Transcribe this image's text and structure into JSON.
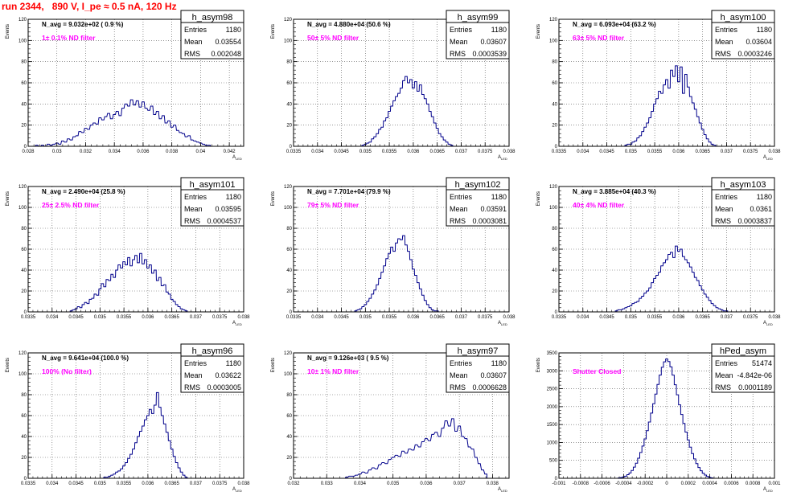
{
  "page": {
    "title": "run 2344,   890 V, I_pe ≈ 0.5 nA, 120 Hz"
  },
  "colors": {
    "title": "#ff0000",
    "histogram": "#00008b",
    "annotation": "#ff00ff",
    "frame": "#000000",
    "grid": "#555555"
  },
  "chart_data": [
    {
      "type": "histogram",
      "name": "h_asym98",
      "ylabel": "Events",
      "xlabel": "A_LED",
      "xlim": [
        0.028,
        0.043
      ],
      "ylim": [
        0,
        120
      ],
      "xticks": [
        "0.028",
        "0.03",
        "0.032",
        "0.034",
        "0.036",
        "0.038",
        "0.04",
        "0.042"
      ],
      "xtick_values": [
        0.028,
        0.03,
        0.032,
        0.034,
        0.036,
        0.038,
        0.04,
        0.042
      ],
      "yticks": [
        0,
        20,
        40,
        60,
        80,
        100,
        120
      ],
      "nbins": 100,
      "stats": {
        "Entries": "1180",
        "Mean": "0.03554",
        "RMS": "0.002048"
      },
      "navg": "N_avg = 9.032e+02 ( 0.9 %)",
      "filter": "1± 0.1% ND filter",
      "x": [
        0.0286,
        0.0288,
        0.029,
        0.0292,
        0.0294,
        0.0296,
        0.0298,
        0.03,
        0.0302,
        0.0304,
        0.0306,
        0.0308,
        0.031,
        0.0312,
        0.0314,
        0.0316,
        0.0318,
        0.032,
        0.0322,
        0.0324,
        0.0326,
        0.0328,
        0.033,
        0.0332,
        0.0334,
        0.0336,
        0.0338,
        0.034,
        0.0342,
        0.0344,
        0.0346,
        0.0348,
        0.035,
        0.0352,
        0.0354,
        0.0356,
        0.0358,
        0.036,
        0.0362,
        0.0364,
        0.0366,
        0.0368,
        0.037,
        0.0372,
        0.0374,
        0.0376,
        0.0378,
        0.038,
        0.0382,
        0.0384,
        0.0386,
        0.0388,
        0.039,
        0.0392,
        0.0394,
        0.0396,
        0.0398,
        0.04,
        0.0402,
        0.0404,
        0.0406
      ],
      "y": [
        1,
        0,
        1,
        0,
        2,
        1,
        2,
        3,
        2,
        5,
        4,
        7,
        6,
        9,
        10,
        14,
        13,
        17,
        16,
        20,
        22,
        21,
        27,
        25,
        28,
        31,
        26,
        30,
        33,
        29,
        36,
        40,
        38,
        44,
        39,
        43,
        37,
        42,
        36,
        34,
        38,
        30,
        33,
        26,
        29,
        22,
        24,
        18,
        20,
        15,
        13,
        12,
        9,
        10,
        6,
        5,
        4,
        3,
        2,
        1,
        1
      ]
    },
    {
      "type": "histogram",
      "name": "h_asym99",
      "ylabel": "Events",
      "xlabel": "A_LED",
      "xlim": [
        0.0335,
        0.038
      ],
      "ylim": [
        0,
        120
      ],
      "xticks": [
        "0.0335",
        "0.034",
        "0.0345",
        "0.035",
        "0.0355",
        "0.036",
        "0.0365",
        "0.037",
        "0.0375",
        "0.038"
      ],
      "xtick_values": [
        0.0335,
        0.034,
        0.0345,
        0.035,
        0.0355,
        0.036,
        0.0365,
        0.037,
        0.0375,
        0.038
      ],
      "yticks": [
        0,
        20,
        40,
        60,
        80,
        100,
        120
      ],
      "nbins": 100,
      "stats": {
        "Entries": "1180",
        "Mean": "0.03607",
        "RMS": "0.0003539"
      },
      "navg": "N_avg = 4.880e+04 (50.6 %)",
      "filter": "50± 5% ND filter",
      "x": [
        0.03495,
        0.035,
        0.03505,
        0.0351,
        0.03515,
        0.0352,
        0.03525,
        0.0353,
        0.03535,
        0.0354,
        0.03545,
        0.0355,
        0.03555,
        0.0356,
        0.03565,
        0.0357,
        0.03575,
        0.0358,
        0.03585,
        0.0359,
        0.03595,
        0.036,
        0.03605,
        0.0361,
        0.03615,
        0.0362,
        0.03625,
        0.0363,
        0.03635,
        0.0364,
        0.03645,
        0.0365,
        0.03655,
        0.0366,
        0.03665,
        0.0367,
        0.03675,
        0.0368
      ],
      "y": [
        1,
        2,
        3,
        4,
        7,
        9,
        12,
        16,
        18,
        24,
        27,
        33,
        38,
        43,
        47,
        50,
        55,
        62,
        66,
        60,
        63,
        55,
        61,
        52,
        58,
        49,
        45,
        40,
        33,
        28,
        22,
        17,
        12,
        9,
        6,
        4,
        2,
        1
      ]
    },
    {
      "type": "histogram",
      "name": "h_asym100",
      "ylabel": "Events",
      "xlabel": "A_LED",
      "xlim": [
        0.0335,
        0.038
      ],
      "ylim": [
        0,
        120
      ],
      "xticks": [
        "0.0335",
        "0.034",
        "0.0345",
        "0.035",
        "0.0355",
        "0.036",
        "0.0365",
        "0.037",
        "0.0375",
        "0.038"
      ],
      "xtick_values": [
        0.0335,
        0.034,
        0.0345,
        0.035,
        0.0355,
        0.036,
        0.0365,
        0.037,
        0.0375,
        0.038
      ],
      "yticks": [
        0,
        20,
        40,
        60,
        80,
        100,
        120
      ],
      "nbins": 100,
      "stats": {
        "Entries": "1180",
        "Mean": "0.03604",
        "RMS": "0.0003246"
      },
      "navg": "N_avg = 6.093e+04 (63.2 %)",
      "filter": "63± 5% ND filter",
      "x": [
        0.0349,
        0.03495,
        0.035,
        0.03505,
        0.0351,
        0.03515,
        0.0352,
        0.03525,
        0.0353,
        0.03535,
        0.0354,
        0.03545,
        0.0355,
        0.03555,
        0.0356,
        0.03565,
        0.0357,
        0.03575,
        0.0358,
        0.03585,
        0.0359,
        0.03595,
        0.036,
        0.03605,
        0.0361,
        0.03615,
        0.0362,
        0.03625,
        0.0363,
        0.03635,
        0.0364,
        0.03645,
        0.0365,
        0.03655,
        0.0366,
        0.03665,
        0.0367,
        0.03675
      ],
      "y": [
        1,
        2,
        2,
        4,
        5,
        8,
        10,
        14,
        18,
        22,
        27,
        33,
        40,
        45,
        52,
        50,
        58,
        63,
        55,
        72,
        66,
        76,
        61,
        75,
        50,
        68,
        56,
        47,
        41,
        35,
        28,
        22,
        16,
        11,
        7,
        4,
        2,
        1
      ]
    },
    {
      "type": "histogram",
      "name": "h_asym101",
      "ylabel": "Events",
      "xlabel": "A_LED",
      "xlim": [
        0.0335,
        0.038
      ],
      "ylim": [
        0,
        120
      ],
      "xticks": [
        "0.0335",
        "0.034",
        "0.0345",
        "0.035",
        "0.0355",
        "0.036",
        "0.0365",
        "0.037",
        "0.0375",
        "0.038"
      ],
      "xtick_values": [
        0.0335,
        0.034,
        0.0345,
        0.035,
        0.0355,
        0.036,
        0.0365,
        0.037,
        0.0375,
        0.038
      ],
      "yticks": [
        0,
        20,
        40,
        60,
        80,
        100,
        120
      ],
      "nbins": 100,
      "stats": {
        "Entries": "1180",
        "Mean": "0.03595",
        "RMS": "0.0004537"
      },
      "navg": "N_avg = 2.490e+04 (25.8 %)",
      "filter": "25± 2.5% ND filter",
      "x": [
        0.0344,
        0.03445,
        0.0345,
        0.03455,
        0.0346,
        0.03465,
        0.0347,
        0.03475,
        0.0348,
        0.03485,
        0.0349,
        0.03495,
        0.035,
        0.03505,
        0.0351,
        0.03515,
        0.0352,
        0.03525,
        0.0353,
        0.03535,
        0.0354,
        0.03545,
        0.0355,
        0.03555,
        0.0356,
        0.03565,
        0.0357,
        0.03575,
        0.0358,
        0.03585,
        0.0359,
        0.03595,
        0.036,
        0.03605,
        0.0361,
        0.03615,
        0.0362,
        0.03625,
        0.0363,
        0.03635,
        0.0364,
        0.03645,
        0.0365,
        0.03655,
        0.0366,
        0.03665,
        0.0367,
        0.03675,
        0.0368
      ],
      "y": [
        1,
        2,
        3,
        5,
        4,
        7,
        9,
        8,
        12,
        13,
        17,
        16,
        22,
        27,
        24,
        31,
        30,
        36,
        33,
        40,
        45,
        42,
        48,
        45,
        52,
        44,
        50,
        54,
        47,
        56,
        46,
        50,
        42,
        45,
        37,
        40,
        30,
        33,
        25,
        26,
        19,
        17,
        12,
        10,
        7,
        5,
        3,
        2,
        1
      ]
    },
    {
      "type": "histogram",
      "name": "h_asym102",
      "ylabel": "Events",
      "xlabel": "A_LED",
      "xlim": [
        0.0335,
        0.038
      ],
      "ylim": [
        0,
        120
      ],
      "xticks": [
        "0.0335",
        "0.034",
        "0.0345",
        "0.035",
        "0.0355",
        "0.036",
        "0.0365",
        "0.037",
        "0.0375",
        "0.038"
      ],
      "xtick_values": [
        0.0335,
        0.034,
        0.0345,
        0.035,
        0.0355,
        0.036,
        0.0365,
        0.037,
        0.0375,
        0.038
      ],
      "yticks": [
        0,
        20,
        40,
        60,
        80,
        100,
        120
      ],
      "nbins": 100,
      "stats": {
        "Entries": "1180",
        "Mean": "0.03591",
        "RMS": "0.0003081"
      },
      "navg": "N_avg = 7.701e+04 (79.9 %)",
      "filter": "79± 5% ND filter",
      "x": [
        0.0348,
        0.03485,
        0.0349,
        0.03495,
        0.035,
        0.03505,
        0.0351,
        0.03515,
        0.0352,
        0.03525,
        0.0353,
        0.03535,
        0.0354,
        0.03545,
        0.0355,
        0.03555,
        0.0356,
        0.03565,
        0.0357,
        0.03575,
        0.0358,
        0.03585,
        0.0359,
        0.03595,
        0.036,
        0.03605,
        0.0361,
        0.03615,
        0.0362,
        0.03625,
        0.0363,
        0.03635,
        0.0364,
        0.03645,
        0.0365
      ],
      "y": [
        1,
        2,
        3,
        5,
        7,
        10,
        13,
        17,
        21,
        26,
        32,
        38,
        44,
        51,
        56,
        62,
        58,
        66,
        70,
        69,
        73,
        64,
        58,
        50,
        41,
        35,
        28,
        22,
        16,
        11,
        7,
        4,
        2,
        1,
        1
      ]
    },
    {
      "type": "histogram",
      "name": "h_asym103",
      "ylabel": "Events",
      "xlabel": "A_LED",
      "xlim": [
        0.0335,
        0.038
      ],
      "ylim": [
        0,
        120
      ],
      "xticks": [
        "0.0335",
        "0.034",
        "0.0345",
        "0.035",
        "0.0355",
        "0.036",
        "0.0365",
        "0.037",
        "0.0375",
        "0.038"
      ],
      "xtick_values": [
        0.0335,
        0.034,
        0.0345,
        0.035,
        0.0355,
        0.036,
        0.0365,
        0.037,
        0.0375,
        0.038
      ],
      "yticks": [
        0,
        20,
        40,
        60,
        80,
        100,
        120
      ],
      "nbins": 100,
      "stats": {
        "Entries": "1180",
        "Mean": "0.0361",
        "RMS": "0.0003837"
      },
      "navg": "N_avg = 3.885e+04 (40.3 %)",
      "filter": "40± 4% ND filter",
      "x": [
        0.0347,
        0.03475,
        0.0348,
        0.03485,
        0.0349,
        0.03495,
        0.035,
        0.03505,
        0.0351,
        0.03515,
        0.0352,
        0.03525,
        0.0353,
        0.03535,
        0.0354,
        0.03545,
        0.0355,
        0.03555,
        0.0356,
        0.03565,
        0.0357,
        0.03575,
        0.0358,
        0.03585,
        0.0359,
        0.03595,
        0.036,
        0.03605,
        0.0361,
        0.03615,
        0.0362,
        0.03625,
        0.0363,
        0.03635,
        0.0364,
        0.03645,
        0.0365,
        0.03655,
        0.0366,
        0.03665,
        0.0367,
        0.03675,
        0.0368,
        0.03685,
        0.0369,
        0.03695,
        0.037
      ],
      "y": [
        1,
        2,
        2,
        3,
        4,
        5,
        6,
        8,
        9,
        10,
        13,
        15,
        18,
        20,
        23,
        28,
        32,
        35,
        38,
        44,
        47,
        50,
        55,
        57,
        52,
        63,
        58,
        60,
        53,
        50,
        47,
        43,
        38,
        33,
        30,
        25,
        21,
        17,
        14,
        11,
        8,
        6,
        4,
        3,
        2,
        1,
        1
      ]
    },
    {
      "type": "histogram",
      "name": "h_asym96",
      "ylabel": "Events",
      "xlabel": "A_LED",
      "xlim": [
        0.0335,
        0.038
      ],
      "ylim": [
        0,
        120
      ],
      "xticks": [
        "0.0335",
        "0.034",
        "0.0345",
        "0.035",
        "0.0355",
        "0.036",
        "0.0365",
        "0.037",
        "0.0375",
        "0.038"
      ],
      "xtick_values": [
        0.0335,
        0.034,
        0.0345,
        0.035,
        0.0355,
        0.036,
        0.0365,
        0.037,
        0.0375,
        0.038
      ],
      "yticks": [
        0,
        20,
        40,
        60,
        80,
        100,
        120
      ],
      "nbins": 100,
      "stats": {
        "Entries": "1180",
        "Mean": "0.03622",
        "RMS": "0.0003005"
      },
      "navg": "N_avg = 9.641e+04 (100.0 %)",
      "filter": "100% (No filter)",
      "x": [
        0.0351,
        0.03515,
        0.0352,
        0.03525,
        0.0353,
        0.03535,
        0.0354,
        0.03545,
        0.0355,
        0.03555,
        0.0356,
        0.03565,
        0.0357,
        0.03575,
        0.0358,
        0.03585,
        0.0359,
        0.03595,
        0.036,
        0.03605,
        0.0361,
        0.03615,
        0.0362,
        0.03625,
        0.0363,
        0.03635,
        0.0364,
        0.03645,
        0.0365,
        0.03655,
        0.0366,
        0.03665,
        0.0367,
        0.03675,
        0.0368
      ],
      "y": [
        1,
        1,
        2,
        3,
        4,
        6,
        7,
        9,
        12,
        15,
        19,
        23,
        28,
        34,
        40,
        45,
        50,
        56,
        60,
        66,
        62,
        70,
        82,
        68,
        60,
        52,
        44,
        36,
        28,
        21,
        15,
        10,
        6,
        3,
        1
      ]
    },
    {
      "type": "histogram",
      "name": "h_asym97",
      "ylabel": "Events",
      "xlabel": "A_LED",
      "xlim": [
        0.032,
        0.0385
      ],
      "ylim": [
        0,
        120
      ],
      "xticks": [
        "0.032",
        "0.033",
        "0.034",
        "0.035",
        "0.036",
        "0.037",
        "0.038"
      ],
      "xtick_values": [
        0.032,
        0.033,
        0.034,
        0.035,
        0.036,
        0.037,
        0.038
      ],
      "yticks": [
        0,
        20,
        40,
        60,
        80,
        100,
        120
      ],
      "nbins": 100,
      "stats": {
        "Entries": "1180",
        "Mean": "0.03607",
        "RMS": "0.0006628"
      },
      "navg": "N_avg = 9.126e+03 ( 9.5 %)",
      "filter": "10± 1% ND filter",
      "x": [
        0.0336,
        0.0337,
        0.0338,
        0.0339,
        0.034,
        0.0341,
        0.0342,
        0.0343,
        0.0344,
        0.0345,
        0.0346,
        0.0347,
        0.0348,
        0.0349,
        0.035,
        0.0351,
        0.0352,
        0.0353,
        0.0354,
        0.0355,
        0.0356,
        0.0357,
        0.0358,
        0.0359,
        0.036,
        0.0361,
        0.0362,
        0.0363,
        0.0364,
        0.0365,
        0.0366,
        0.0367,
        0.0368,
        0.0369,
        0.037,
        0.0371,
        0.0372,
        0.0373,
        0.0374,
        0.0375,
        0.0376,
        0.0377,
        0.0378
      ],
      "y": [
        1,
        2,
        2,
        3,
        4,
        6,
        5,
        8,
        10,
        9,
        13,
        15,
        14,
        18,
        20,
        22,
        21,
        26,
        24,
        28,
        27,
        32,
        30,
        35,
        38,
        36,
        42,
        44,
        40,
        48,
        55,
        50,
        57,
        45,
        50,
        40,
        38,
        30,
        28,
        20,
        14,
        8,
        4
      ]
    },
    {
      "type": "histogram",
      "name": "hPed_asym",
      "ylabel": "Events",
      "xlabel": "A_LED",
      "xlim": [
        -0.001,
        0.001
      ],
      "ylim": [
        0,
        3500
      ],
      "xticks": [
        "-0.001",
        "-0.0008",
        "-0.0006",
        "-0.0004",
        "-0.0002",
        "0",
        "0.0002",
        "0.0004",
        "0.0006",
        "0.0008",
        "0.001"
      ],
      "xtick_values": [
        -0.001,
        -0.0008,
        -0.0006,
        -0.0004,
        -0.0002,
        0,
        0.0002,
        0.0004,
        0.0006,
        0.0008,
        0.001
      ],
      "yticks": [
        0,
        500,
        1000,
        1500,
        2000,
        2500,
        3000,
        3500
      ],
      "nbins": 100,
      "stats": {
        "Entries": "51474",
        "Mean": "-4.842e-06",
        "RMS": "0.0001189"
      },
      "navg": "",
      "filter": "Shutter Closed",
      "x": [
        -0.00044,
        -0.00042,
        -0.0004,
        -0.00038,
        -0.00036,
        -0.00034,
        -0.00032,
        -0.0003,
        -0.00028,
        -0.00026,
        -0.00024,
        -0.00022,
        -0.0002,
        -0.00018,
        -0.00016,
        -0.00014,
        -0.00012,
        -0.0001,
        -8e-05,
        -6e-05,
        -4e-05,
        -2e-05,
        0,
        2e-05,
        4e-05,
        6e-05,
        8e-05,
        0.0001,
        0.00012,
        0.00014,
        0.00016,
        0.00018,
        0.0002,
        0.00022,
        0.00024,
        0.00026,
        0.00028,
        0.0003,
        0.00032,
        0.00034,
        0.00036,
        0.00038,
        0.0004,
        0.00042
      ],
      "y": [
        10,
        20,
        40,
        60,
        100,
        150,
        220,
        310,
        420,
        560,
        720,
        900,
        1100,
        1330,
        1570,
        1820,
        2080,
        2350,
        2620,
        2880,
        3100,
        3250,
        3330,
        3260,
        3110,
        2880,
        2610,
        2330,
        2050,
        1780,
        1530,
        1290,
        1070,
        870,
        690,
        540,
        410,
        300,
        210,
        140,
        90,
        50,
        25,
        10
      ]
    }
  ]
}
